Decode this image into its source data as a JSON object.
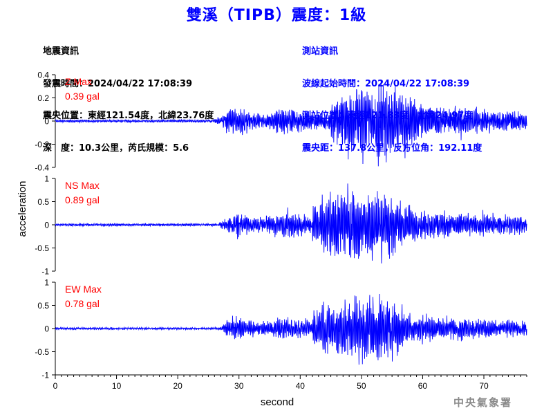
{
  "title": "雙溪（TIPB）震度：1級",
  "event_info": {
    "heading": "地震資訊",
    "origin_time": "發震時間：2024/04/22 17:08:39",
    "epicenter": "震央位置：東經121.54度，北緯23.76度",
    "depth_magnitude": "深　度：10.3公里，芮氏規模：5.6"
  },
  "station_info": {
    "heading": "測站資訊",
    "wave_start": "波線起始時間：2024/04/22 17:08:39",
    "location": "測站位置：東經121.83度，北緯24.97度",
    "distance_azimuth": "震央距：137.8公里，反方位角：192.11度"
  },
  "agency": "中央氣象署",
  "colors": {
    "trace": "#0000ff",
    "label": "#ff0000",
    "title": "#0000ff",
    "axis": "#000000"
  },
  "chart_data": {
    "type": "line",
    "xlabel": "second",
    "ylabel": "acceleration",
    "xlim": [
      0,
      77
    ],
    "x_ticks": [
      0,
      10,
      20,
      30,
      40,
      50,
      60,
      70
    ],
    "sample_interval": 0.04,
    "panels": [
      {
        "component": "Z",
        "label": "Z Max",
        "max_value": "0.39 gal",
        "ylim": [
          -0.4,
          0.4
        ],
        "y_ticks": [
          0.4,
          0.2,
          0,
          -0.2,
          -0.4
        ],
        "y_tick_labels": [
          "0.4",
          "0.2",
          "0",
          "-0.2",
          "-0.4"
        ],
        "peak": 0.39,
        "onset": 25.5,
        "strong_start": 45,
        "decay": 60
      },
      {
        "component": "NS",
        "label": "NS Max",
        "max_value": "0.89 gal",
        "ylim": [
          -1,
          1
        ],
        "y_ticks": [
          1,
          0.5,
          0,
          -0.5,
          -1
        ],
        "y_tick_labels": [
          "1",
          "0.5",
          "0",
          "-0.5",
          "-1"
        ],
        "peak": 0.89,
        "onset": 26.5,
        "strong_start": 42,
        "decay": 58
      },
      {
        "component": "EW",
        "label": "EW Max",
        "max_value": "0.78 gal",
        "ylim": [
          -1,
          1
        ],
        "y_ticks": [
          1,
          0.5,
          0,
          -0.5,
          -1
        ],
        "y_tick_labels": [
          "1",
          "0.5",
          "0",
          "-0.5",
          "-1"
        ],
        "peak": 0.78,
        "onset": 26.5,
        "strong_start": 42,
        "decay": 58
      }
    ]
  }
}
